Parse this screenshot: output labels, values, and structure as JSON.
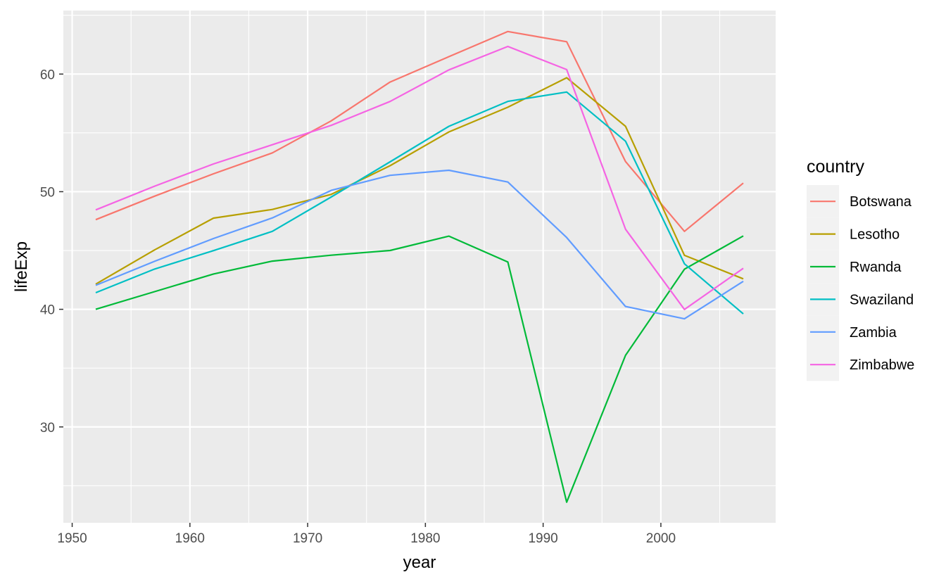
{
  "chart_data": {
    "type": "line",
    "title": "",
    "xlabel": "year",
    "ylabel": "lifeExp",
    "xlim": [
      1949.25,
      2009.75
    ],
    "ylim": [
      21.85,
      65.4
    ],
    "x_ticks": [
      1950,
      1960,
      1970,
      1980,
      1990,
      2000
    ],
    "y_ticks": [
      30,
      40,
      50,
      60
    ],
    "grid": true,
    "legend": {
      "title": "country",
      "position": "right"
    },
    "x": [
      1952,
      1957,
      1962,
      1967,
      1972,
      1977,
      1982,
      1987,
      1992,
      1997,
      2002,
      2007
    ],
    "series": [
      {
        "name": "Botswana",
        "color": "#F8766D",
        "values": [
          47.62,
          49.62,
          51.52,
          53.3,
          56.02,
          59.32,
          61.48,
          63.62,
          62.75,
          52.56,
          46.63,
          50.73
        ]
      },
      {
        "name": "Lesotho",
        "color": "#B79F00",
        "values": [
          42.14,
          45.05,
          47.75,
          48.49,
          49.77,
          52.21,
          55.08,
          57.18,
          59.69,
          55.56,
          44.59,
          42.59
        ]
      },
      {
        "name": "Rwanda",
        "color": "#00BA38",
        "values": [
          40.0,
          41.5,
          43.0,
          44.1,
          44.6,
          45.0,
          46.22,
          44.02,
          23.6,
          36.09,
          43.41,
          46.24
        ]
      },
      {
        "name": "Swaziland",
        "color": "#00BFC4",
        "values": [
          41.41,
          43.42,
          44.99,
          46.63,
          49.55,
          52.54,
          55.56,
          57.68,
          58.47,
          54.29,
          43.87,
          39.61
        ]
      },
      {
        "name": "Zambia",
        "color": "#619CFF",
        "values": [
          42.04,
          44.08,
          46.02,
          47.77,
          50.11,
          51.39,
          51.82,
          50.82,
          46.1,
          40.24,
          39.19,
          42.38
        ]
      },
      {
        "name": "Zimbabwe",
        "color": "#F564E3",
        "values": [
          48.45,
          50.47,
          52.36,
          53.99,
          55.64,
          57.67,
          60.36,
          62.35,
          60.38,
          46.81,
          39.99,
          43.49
        ]
      }
    ]
  }
}
